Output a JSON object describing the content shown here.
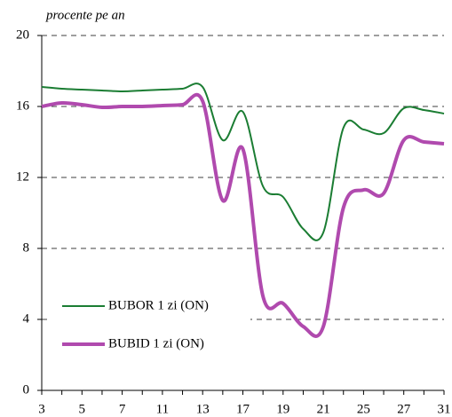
{
  "chart_data": {
    "type": "line",
    "ylabel": "procente pe an",
    "categories": [
      "3",
      null,
      "5",
      null,
      "7",
      null,
      "11",
      null,
      "13",
      null,
      "17",
      null,
      "19",
      null,
      "21",
      null,
      "25",
      null,
      "27",
      null,
      "31"
    ],
    "series": [
      {
        "name": "BUBOR 1 zi (ON)",
        "color": "#1b7d33",
        "width": 2,
        "values": [
          17.1,
          17.0,
          16.95,
          16.9,
          16.85,
          16.9,
          16.95,
          17.0,
          17.1,
          14.1,
          15.7,
          11.5,
          10.9,
          9.1,
          8.9,
          14.8,
          14.7,
          14.5,
          15.9,
          15.8,
          15.6
        ]
      },
      {
        "name": "BUBID 1 zi (ON)",
        "color": "#b04aae",
        "width": 4,
        "values": [
          16.0,
          16.2,
          16.1,
          15.95,
          16.0,
          16.0,
          16.05,
          16.1,
          16.3,
          10.7,
          13.6,
          5.3,
          4.9,
          3.6,
          3.6,
          10.3,
          11.3,
          11.1,
          14.1,
          14.0,
          13.9
        ]
      }
    ],
    "ylim": [
      0,
      20
    ],
    "yticks": [
      0,
      4,
      8,
      12,
      16,
      20
    ],
    "grid": true,
    "legend": "lower left"
  }
}
